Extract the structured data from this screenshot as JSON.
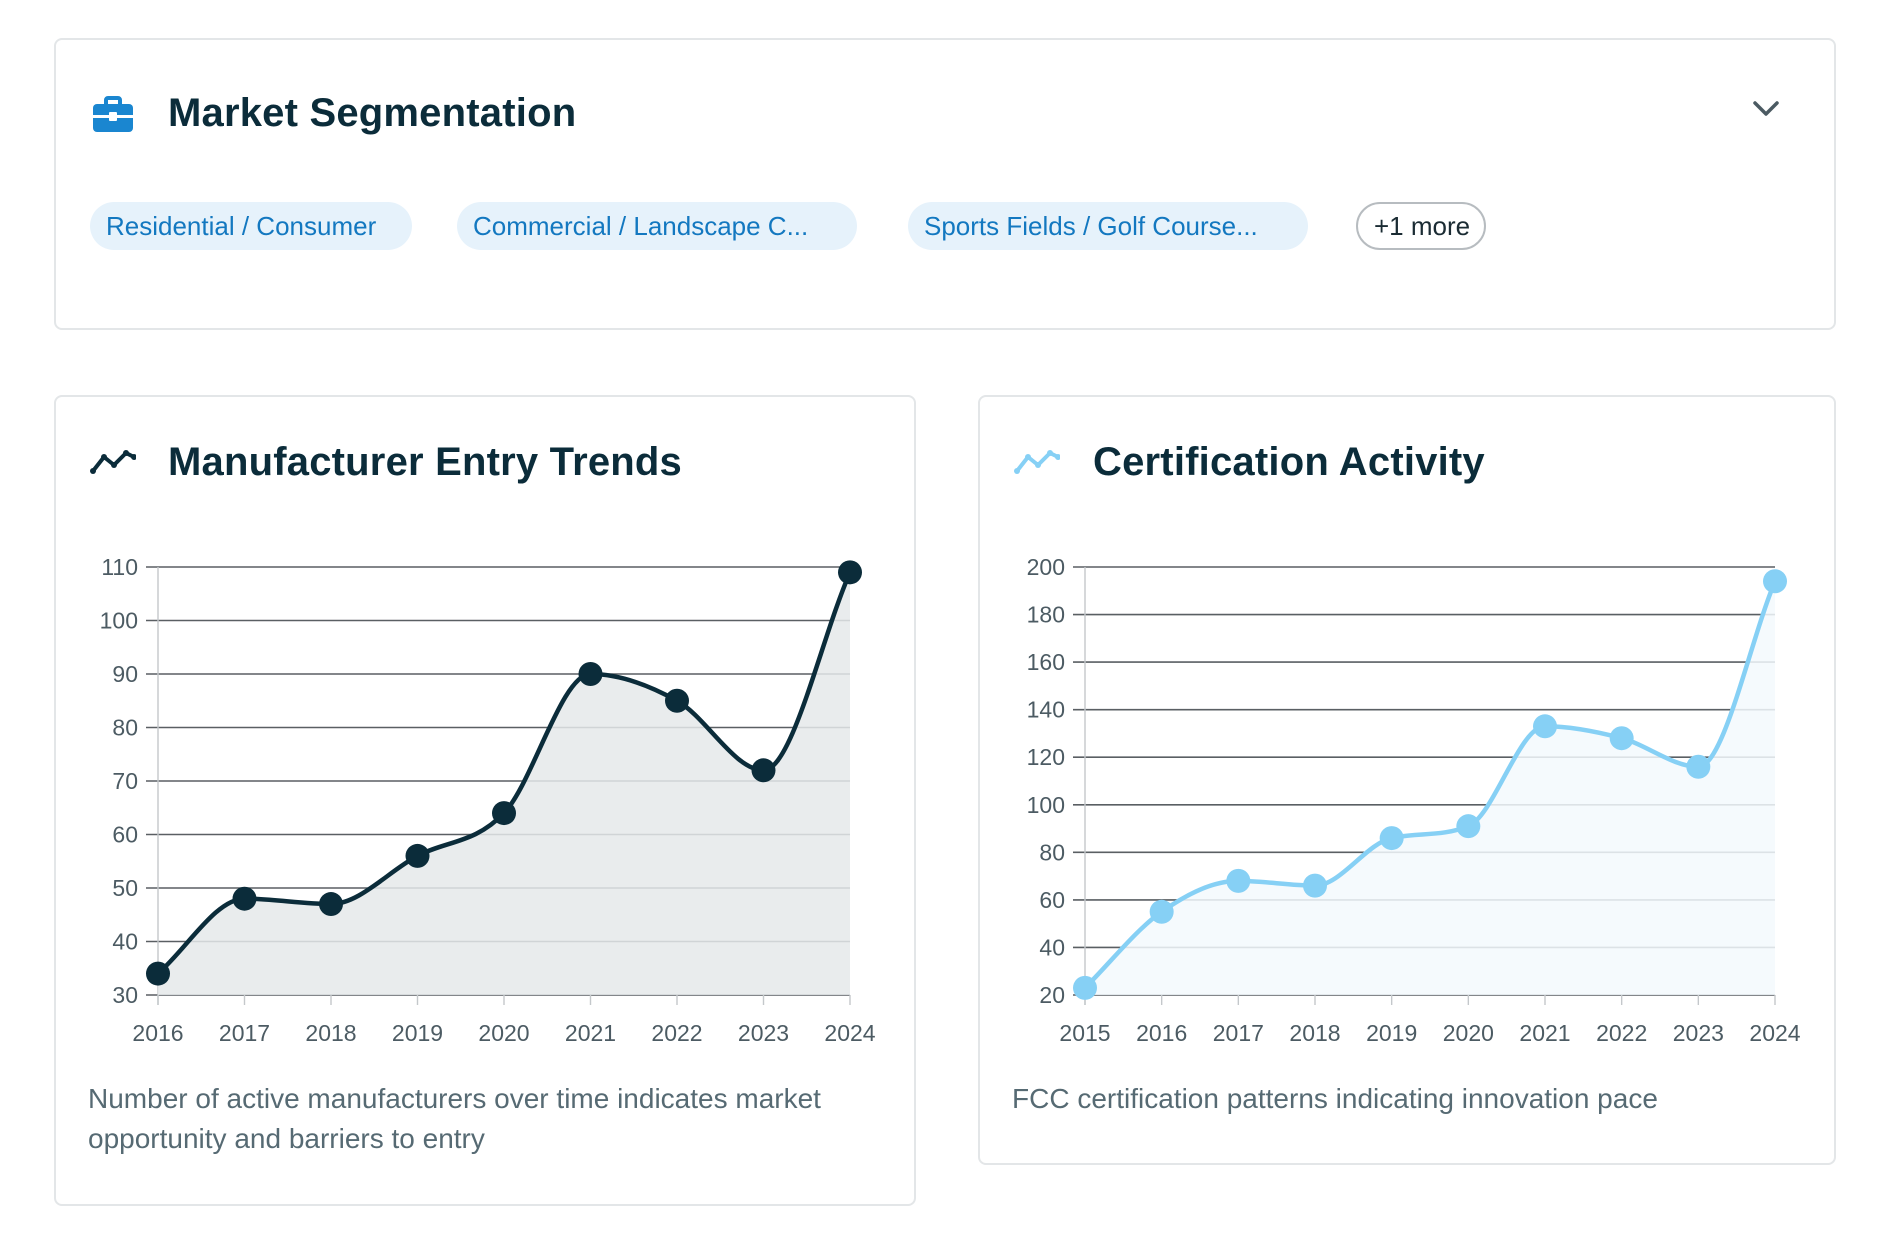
{
  "segmentation": {
    "title": "Market Segmentation",
    "icon": "briefcase-icon",
    "tags": [
      {
        "label": "Residential / Consumer"
      },
      {
        "label": "Commercial / Landscape C..."
      },
      {
        "label": "Sports Fields / Golf Course..."
      }
    ],
    "more_label": "+1 more"
  },
  "trends": {
    "title": "Manufacturer Entry Trends",
    "icon": "trend-line-icon",
    "caption": "Number of active manufacturers over time indicates market opportunity and barriers to entry",
    "chart_data": {
      "type": "area",
      "x": [
        "2016",
        "2017",
        "2018",
        "2019",
        "2020",
        "2021",
        "2022",
        "2023",
        "2024"
      ],
      "series": [
        {
          "values": [
            34,
            48,
            47,
            56,
            64,
            90,
            85,
            72,
            109
          ]
        }
      ],
      "ylim": [
        30,
        110
      ],
      "yticks": [
        30,
        40,
        50,
        60,
        70,
        80,
        90,
        100,
        110
      ],
      "grid": true,
      "line_color": "#0b2c3a",
      "fill_color": "#e5e9ea"
    }
  },
  "certification": {
    "title": "Certification Activity",
    "icon": "trend-line-icon",
    "caption": "FCC certification patterns indicating innovation pace",
    "chart_data": {
      "type": "area",
      "x": [
        "2015",
        "2016",
        "2017",
        "2018",
        "2019",
        "2020",
        "2021",
        "2022",
        "2023",
        "2024"
      ],
      "series": [
        {
          "values": [
            23,
            55,
            68,
            66,
            86,
            91,
            133,
            128,
            116,
            194
          ]
        }
      ],
      "ylim": [
        20,
        200
      ],
      "yticks": [
        20,
        40,
        60,
        80,
        100,
        120,
        140,
        160,
        180,
        200
      ],
      "grid": true,
      "line_color": "#86d0f5",
      "fill_color": "#f3f9fd"
    }
  }
}
